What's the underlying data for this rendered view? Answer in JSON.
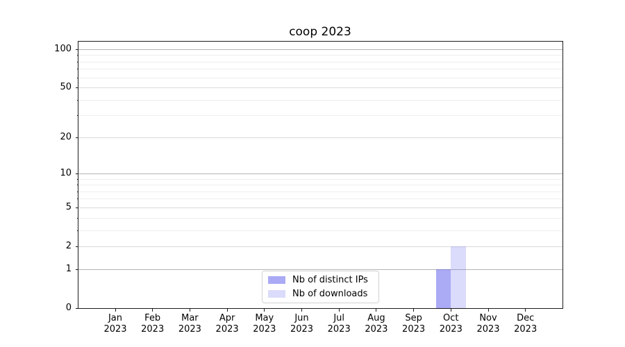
{
  "title": "coop 2023",
  "colors": {
    "bar_base_rgb": "85,85,235",
    "bar_ips_alpha": 0.5,
    "bar_downloads_alpha": 0.21,
    "bar_ips_hex": "#aaaaf0",
    "bar_downloads_hex": "#dcdcf8",
    "grid_major": "#b4b4b4",
    "grid_semi": "#d9d9d9",
    "grid_minor": "#ededed",
    "spine": "#1a1a1a"
  },
  "legend": {
    "items": [
      {
        "label": "Nb of distinct IPs",
        "swatch_rgba": "rgba(85,85,235,0.50)"
      },
      {
        "label": "Nb of downloads",
        "swatch_rgba": "rgba(85,85,235,0.21)"
      }
    ]
  },
  "chart_data": {
    "type": "bar",
    "title": "coop 2023",
    "categories": [
      "Jan 2023",
      "Feb 2023",
      "Mar 2023",
      "Apr 2023",
      "May 2023",
      "Jun 2023",
      "Jul 2023",
      "Aug 2023",
      "Sep 2023",
      "Oct 2023",
      "Nov 2023",
      "Dec 2023"
    ],
    "x_tick_top": [
      "Jan",
      "Feb",
      "Mar",
      "Apr",
      "May",
      "Jun",
      "Jul",
      "Aug",
      "Sep",
      "Oct",
      "Nov",
      "Dec"
    ],
    "x_tick_bottom": "2023",
    "series": [
      {
        "name": "Nb of distinct IPs",
        "values": [
          0,
          0,
          0,
          0,
          0,
          0,
          0,
          0,
          0,
          1,
          0,
          0
        ],
        "rgba": "rgba(85,85,235,0.50)"
      },
      {
        "name": "Nb of downloads",
        "values": [
          0,
          0,
          0,
          0,
          0,
          0,
          0,
          0,
          0,
          2,
          0,
          0
        ],
        "rgba": "rgba(85,85,235,0.21)"
      }
    ],
    "xlabel": "",
    "ylabel": "",
    "y_scale": {
      "type": "log1p",
      "ymax": 115.2
    },
    "y_ticks_labeled": [
      0,
      1,
      2,
      5,
      10,
      20,
      50,
      100
    ],
    "y_ticks_minor": [
      3,
      4,
      6,
      7,
      8,
      9,
      30,
      40,
      60,
      70,
      80,
      90
    ],
    "grid_tier_major": [
      1,
      10,
      100
    ],
    "grid_tier_semi": [
      2,
      5,
      20,
      50
    ],
    "grid": "both",
    "legend_position": "lower center inside axes"
  }
}
